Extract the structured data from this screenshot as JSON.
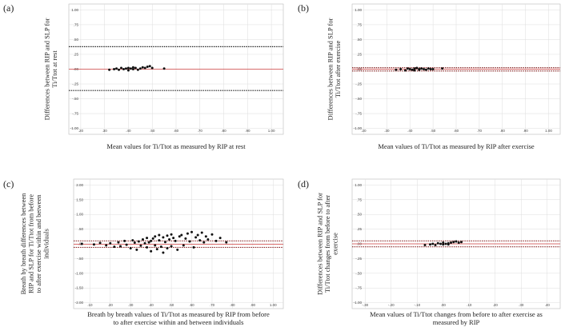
{
  "chart_data": [
    {
      "type": "scatter",
      "panel": "(a)",
      "ylabel": [
        "Differences between RIP and SLP for",
        "Ti/Ttot at rest"
      ],
      "xlabel": [
        "Mean values for Ti/Ttot as measured by RIP at rest"
      ],
      "xlim": [
        0.15,
        1.05
      ],
      "ylim": [
        -1.1,
        1.1
      ],
      "xticks": [
        {
          "value": 0.2,
          "label": ".20"
        },
        {
          "value": 0.3,
          "label": ".30"
        },
        {
          "value": 0.4,
          "label": ".40"
        },
        {
          "value": 0.5,
          "label": ".50"
        },
        {
          "value": 0.6,
          "label": ".60"
        },
        {
          "value": 0.7,
          "label": ".70"
        },
        {
          "value": 0.8,
          "label": ".80"
        },
        {
          "value": 0.9,
          "label": ".90"
        },
        {
          "value": 1,
          "label": "1.00"
        }
      ],
      "yticks": [
        {
          "value": 1,
          "label": "1.00"
        },
        {
          "value": 0.75,
          "label": ".75"
        },
        {
          "value": 0.5,
          "label": ".50"
        },
        {
          "value": 0.25,
          "label": ".25"
        },
        {
          "value": 0,
          "label": ".00"
        },
        {
          "value": -0.25,
          "label": "-.25"
        },
        {
          "value": -0.5,
          "label": "-.50"
        },
        {
          "value": -0.75,
          "label": "-.75"
        },
        {
          "value": -1,
          "label": "-1.00"
        }
      ],
      "grid": true,
      "color": "#111111",
      "lines": [
        {
          "value": 0.38,
          "color": "#222222",
          "style": "dotted"
        },
        {
          "value": 0,
          "color": "#d04040",
          "style": "solid"
        },
        {
          "value": -0.36,
          "color": "#222222",
          "style": "dotted"
        }
      ],
      "x": [
        0.32,
        0.34,
        0.35,
        0.36,
        0.37,
        0.38,
        0.39,
        0.4,
        0.4,
        0.41,
        0.42,
        0.42,
        0.43,
        0.44,
        0.45,
        0.46,
        0.47,
        0.48,
        0.49,
        0.5,
        0.55
      ],
      "values": [
        -0.01,
        0,
        0.01,
        -0.01,
        0.02,
        0,
        0.01,
        -0.02,
        0.02,
        0.01,
        0.03,
        0,
        0.02,
        -0.01,
        0.01,
        0.03,
        0.02,
        0.04,
        0.05,
        0.02,
        0.01
      ]
    },
    {
      "type": "scatter",
      "panel": "(b)",
      "ylabel": [
        "Differences between RIP and SLP for",
        "Ti/Ttot after exercise"
      ],
      "xlabel": [
        "Mean values of Ti/Ttot as measured by RIP after exercise"
      ],
      "xlim": [
        0.15,
        1.05
      ],
      "ylim": [
        -1.1,
        1.1
      ],
      "xticks": [
        {
          "value": 0.2,
          "label": ".20"
        },
        {
          "value": 0.3,
          "label": ".30"
        },
        {
          "value": 0.4,
          "label": ".40"
        },
        {
          "value": 0.5,
          "label": ".50"
        },
        {
          "value": 0.6,
          "label": ".60"
        },
        {
          "value": 0.7,
          "label": ".70"
        },
        {
          "value": 0.8,
          "label": ".80"
        },
        {
          "value": 0.9,
          "label": ".90"
        },
        {
          "value": 1,
          "label": "1.00"
        }
      ],
      "yticks": [
        {
          "value": 1,
          "label": "1.00"
        },
        {
          "value": 0.75,
          "label": ".75"
        },
        {
          "value": 0.5,
          "label": ".50"
        },
        {
          "value": 0.25,
          "label": ".25"
        },
        {
          "value": 0,
          "label": ".00"
        },
        {
          "value": -0.25,
          "label": "-.25"
        },
        {
          "value": -0.5,
          "label": "-.50"
        },
        {
          "value": -0.75,
          "label": "-.75"
        },
        {
          "value": -1,
          "label": "-1.00"
        }
      ],
      "grid": true,
      "color": "#111111",
      "lines": [
        {
          "value": 0.025,
          "color": "#8b2b2b",
          "style": "dotted"
        },
        {
          "value": 0,
          "color": "#d04040",
          "style": "solid"
        },
        {
          "value": -0.03,
          "color": "#8b2b2b",
          "style": "dotted"
        }
      ],
      "x": [
        0.34,
        0.36,
        0.38,
        0.39,
        0.4,
        0.41,
        0.42,
        0.42,
        0.43,
        0.44,
        0.44,
        0.45,
        0.46,
        0.47,
        0.48,
        0.49,
        0.5,
        0.54
      ],
      "values": [
        -0.01,
        0,
        -0.02,
        0.01,
        0,
        -0.01,
        0.01,
        -0.02,
        0.02,
        0,
        -0.01,
        0.01,
        0,
        -0.01,
        0.01,
        0,
        0,
        0.01
      ]
    },
    {
      "type": "scatter",
      "panel": "(c)",
      "ylabel": [
        "Breath by breath differences between",
        "RIP and SLP for Ti/Ttot from before",
        "to after exercise within and between",
        "individuals"
      ],
      "xlabel": [
        "Breath by breath values of Ti/Ttot as measured by RIP from before",
        "to after exercise within and between individuals"
      ],
      "xlim": [
        0.02,
        1.05
      ],
      "ylim": [
        -2.2,
        2.2
      ],
      "xticks": [
        {
          "value": 0.1,
          "label": ".10"
        },
        {
          "value": 0.2,
          "label": ".20"
        },
        {
          "value": 0.3,
          "label": ".30"
        },
        {
          "value": 0.4,
          "label": ".40"
        },
        {
          "value": 0.5,
          "label": ".50"
        },
        {
          "value": 0.6,
          "label": ".60"
        },
        {
          "value": 0.7,
          "label": ".70"
        },
        {
          "value": 0.8,
          "label": ".80"
        },
        {
          "value": 0.9,
          "label": ".90"
        },
        {
          "value": 1,
          "label": "1.00"
        }
      ],
      "yticks": [
        {
          "value": 2,
          "label": "2.00"
        },
        {
          "value": 1.5,
          "label": "1.50"
        },
        {
          "value": 1,
          "label": "1.00"
        },
        {
          "value": 0.5,
          "label": ".50"
        },
        {
          "value": 0,
          "label": ".00"
        },
        {
          "value": -0.5,
          "label": "-.50"
        },
        {
          "value": -1,
          "label": "-1.00"
        },
        {
          "value": -1.5,
          "label": "-1.50"
        },
        {
          "value": -2,
          "label": "-2.00"
        }
      ],
      "grid": true,
      "color": "#111111",
      "lines": [
        {
          "value": 0.1,
          "color": "#8b2b2b",
          "style": "dotted"
        },
        {
          "value": -0.01,
          "color": "#d04040",
          "style": "solid"
        },
        {
          "value": -0.12,
          "color": "#8b2b2b",
          "style": "dotted"
        }
      ],
      "x": [
        0.06,
        0.12,
        0.15,
        0.18,
        0.2,
        0.22,
        0.24,
        0.25,
        0.27,
        0.28,
        0.3,
        0.31,
        0.32,
        0.33,
        0.34,
        0.35,
        0.36,
        0.37,
        0.38,
        0.38,
        0.39,
        0.4,
        0.4,
        0.41,
        0.42,
        0.42,
        0.43,
        0.44,
        0.44,
        0.45,
        0.46,
        0.46,
        0.47,
        0.48,
        0.48,
        0.49,
        0.5,
        0.5,
        0.51,
        0.52,
        0.53,
        0.54,
        0.55,
        0.56,
        0.57,
        0.58,
        0.59,
        0.6,
        0.61,
        0.62,
        0.63,
        0.64,
        0.65,
        0.66,
        0.67,
        0.68,
        0.7,
        0.72,
        0.74,
        0.77
      ],
      "values": [
        0,
        -0.02,
        0.03,
        -0.05,
        0.02,
        -0.1,
        0.05,
        -0.08,
        0.1,
        -0.03,
        -0.15,
        0.12,
        0.04,
        -0.2,
        0.08,
        -0.06,
        0.15,
        0.02,
        -0.12,
        0.2,
        0.05,
        -0.25,
        0.1,
        0.18,
        -0.05,
        0.25,
        -0.18,
        0.12,
        0.3,
        -0.1,
        0.22,
        -0.3,
        0.06,
        0.28,
        -0.15,
        0.15,
        0.32,
        -0.08,
        0.2,
        0.1,
        -0.2,
        0.25,
        0.3,
        -0.05,
        0.18,
        0.35,
        0.08,
        0.4,
        -0.12,
        0.22,
        0.3,
        0.12,
        0.38,
        0.05,
        0.25,
        0.15,
        0.32,
        0.1,
        0.2,
        0.05
      ]
    },
    {
      "type": "scatter",
      "panel": "(d)",
      "ylabel": [
        "Differences between RIP and SLP for",
        "Ti/Ttot changes from before to after",
        "exercise"
      ],
      "xlabel": [
        "Mean values of Ti/Ttot changes from before to after exercise as",
        "measured by RIP"
      ],
      "xlim": [
        -0.35,
        0.45
      ],
      "ylim": [
        -1.1,
        1.1
      ],
      "xticks": [
        {
          "value": -0.3,
          "label": "-.30"
        },
        {
          "value": -0.2,
          "label": "-.20"
        },
        {
          "value": -0.1,
          "label": "-.10"
        },
        {
          "value": 0,
          "label": ".00"
        },
        {
          "value": 0.1,
          "label": ".10"
        },
        {
          "value": 0.2,
          "label": ".20"
        },
        {
          "value": 0.3,
          "label": ".30"
        },
        {
          "value": 0.4,
          "label": ".40"
        }
      ],
      "yticks": [
        {
          "value": 1,
          "label": "1.00"
        },
        {
          "value": 0.75,
          "label": ".75"
        },
        {
          "value": 0.5,
          "label": ".50"
        },
        {
          "value": 0.25,
          "label": ".25"
        },
        {
          "value": 0,
          "label": ".00"
        },
        {
          "value": -0.25,
          "label": "-.25"
        },
        {
          "value": -0.5,
          "label": "-.50"
        },
        {
          "value": -0.75,
          "label": "-.75"
        },
        {
          "value": -1,
          "label": "-1.00"
        }
      ],
      "grid": true,
      "color": "#111111",
      "lines": [
        {
          "value": 0.05,
          "color": "#8b2b2b",
          "style": "dotted"
        },
        {
          "value": 0,
          "color": "#d04040",
          "style": "solid"
        },
        {
          "value": -0.05,
          "color": "#8b2b2b",
          "style": "dotted"
        }
      ],
      "x": [
        -0.07,
        -0.05,
        -0.04,
        -0.03,
        -0.02,
        -0.01,
        0,
        0,
        0.01,
        0.02,
        0.02,
        0.03,
        0.04,
        0.05,
        0.06,
        0.07
      ],
      "values": [
        -0.02,
        -0.01,
        0,
        -0.02,
        0.01,
        0,
        -0.01,
        0.02,
        0,
        0.01,
        -0.01,
        0.02,
        0.03,
        0.04,
        0.02,
        0.03
      ]
    }
  ]
}
